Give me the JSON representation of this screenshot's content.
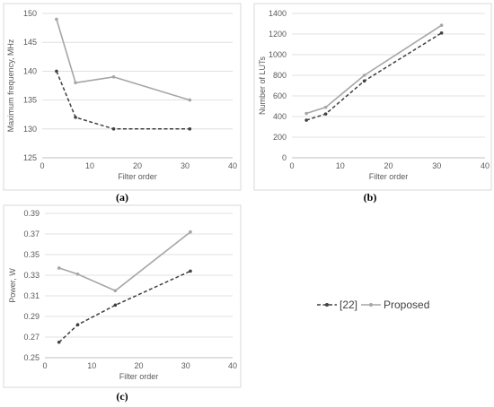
{
  "chart_data": [
    {
      "type": "line",
      "panel": "(a)",
      "xlabel": "Filter order",
      "ylabel": "Maximum frequency, MHz",
      "xlim": [
        0,
        40
      ],
      "ylim": [
        125,
        150
      ],
      "xticks": [
        0,
        10,
        20,
        30,
        40
      ],
      "yticks": [
        125,
        130,
        135,
        140,
        145,
        150
      ],
      "grid": true,
      "series": [
        {
          "name": "[22]",
          "color": "#404040",
          "dashed": true,
          "x": [
            3,
            7,
            15,
            31
          ],
          "y": [
            140,
            132,
            130,
            130
          ]
        },
        {
          "name": "Proposed",
          "color": "#a6a6a6",
          "dashed": false,
          "x": [
            3,
            7,
            15,
            31
          ],
          "y": [
            149,
            138,
            139,
            135
          ]
        }
      ]
    },
    {
      "type": "line",
      "panel": "(b)",
      "xlabel": "Filter order",
      "ylabel": "Number of LUTs",
      "xlim": [
        0,
        40
      ],
      "ylim": [
        0,
        1400
      ],
      "xticks": [
        0,
        10,
        20,
        30,
        40
      ],
      "yticks": [
        0,
        200,
        400,
        600,
        800,
        1000,
        1200,
        1400
      ],
      "grid": true,
      "series": [
        {
          "name": "[22]",
          "color": "#404040",
          "dashed": true,
          "x": [
            3,
            7,
            15,
            31
          ],
          "y": [
            365,
            425,
            745,
            1210
          ]
        },
        {
          "name": "Proposed",
          "color": "#a6a6a6",
          "dashed": false,
          "x": [
            3,
            7,
            15,
            31
          ],
          "y": [
            430,
            490,
            800,
            1285
          ]
        }
      ]
    },
    {
      "type": "line",
      "panel": "(c)",
      "xlabel": "Filter order",
      "ylabel": "Power, W",
      "xlim": [
        0,
        40
      ],
      "ylim": [
        0.25,
        0.39
      ],
      "xticks": [
        0,
        10,
        20,
        30,
        40
      ],
      "yticks": [
        0.25,
        0.27,
        0.29,
        0.31,
        0.33,
        0.35,
        0.37,
        0.39
      ],
      "ytick_labels": [
        "0.25",
        "0.27",
        "0.29",
        "0.31",
        "0.33",
        "0.35",
        "0.37",
        "0.39"
      ],
      "grid": true,
      "series": [
        {
          "name": "[22]",
          "color": "#404040",
          "dashed": true,
          "x": [
            3,
            7,
            15,
            31
          ],
          "y": [
            0.265,
            0.282,
            0.301,
            0.334
          ]
        },
        {
          "name": "Proposed",
          "color": "#a6a6a6",
          "dashed": false,
          "x": [
            3,
            7,
            15,
            31
          ],
          "y": [
            0.337,
            0.331,
            0.315,
            0.372
          ]
        }
      ]
    }
  ],
  "legend": {
    "items": [
      {
        "label": "[22]",
        "color": "#404040",
        "dashed": true
      },
      {
        "label": "Proposed",
        "color": "#a6a6a6",
        "dashed": false
      }
    ]
  }
}
